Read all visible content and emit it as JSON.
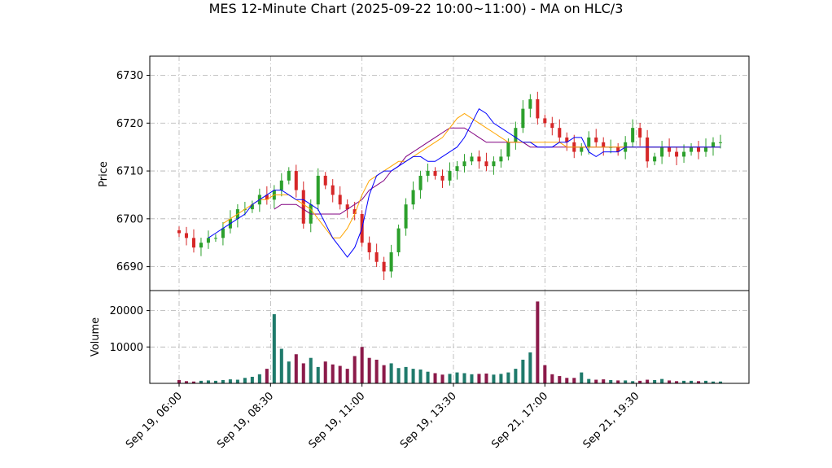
{
  "chart_data": {
    "type": "candlestick",
    "title": "MES 12-Minute Chart (2025-09-22 10:00~11:00) - MA on HLC/3",
    "price_panel": {
      "ylabel": "Price",
      "ylim": [
        6685,
        6734
      ],
      "yticks": [
        6690,
        6700,
        6710,
        6720,
        6730
      ]
    },
    "volume_panel": {
      "ylabel": "Volume",
      "ylim": [
        0,
        25500
      ],
      "yticks": [
        10000,
        20000
      ],
      "tick_labels": [
        "10000",
        "20000"
      ]
    },
    "x_axis": {
      "tick_labels": [
        "Sep 19, 06:00",
        "Sep 19, 08:30",
        "Sep 19, 11:00",
        "Sep 19, 13:30",
        "Sep 21, 17:00",
        "Sep 21, 19:30"
      ],
      "tick_bar_index": [
        0,
        12.5,
        25,
        37.5,
        50,
        62.5
      ],
      "bar_count": 75
    },
    "grid": true,
    "colors": {
      "up": "#2ca02c",
      "down": "#d62728",
      "ma_fast": "#0000ff",
      "ma_mid": "#ffa500",
      "ma_slow": "#800080",
      "volume_up": "#1f7a6b",
      "volume_down": "#8b1a4a",
      "grid": "#b0b0b0"
    },
    "close_path": [
      6697,
      6696,
      6694,
      6695,
      6696,
      6696,
      6698,
      6700,
      6702,
      6702,
      6703,
      6705,
      6704,
      6706,
      6708,
      6710,
      6706,
      6699,
      6703,
      6709,
      6707,
      6705,
      6703,
      6702,
      6701,
      6695,
      6693,
      6691,
      6689,
      6693,
      6698,
      6703,
      6706,
      6709,
      6710,
      6709,
      6708,
      6710,
      6711,
      6712,
      6713,
      6712,
      6711,
      6712,
      6713,
      6716,
      6719,
      6723,
      6725,
      6721,
      6720,
      6719,
      6717,
      6716,
      6714,
      6715,
      6717,
      6716,
      6715,
      6715,
      6714,
      6716,
      6719,
      6717,
      6712,
      6713,
      6715,
      6714,
      6713,
      6714,
      6715,
      6714,
      6715,
      6716,
      6716
    ],
    "volume": [
      900,
      600,
      500,
      700,
      800,
      700,
      900,
      1100,
      1000,
      1500,
      1800,
      2500,
      4000,
      19000,
      9500,
      6000,
      8000,
      5500,
      7000,
      4500,
      6000,
      5200,
      4800,
      4000,
      7500,
      10000,
      7000,
      6500,
      5000,
      5500,
      4200,
      4500,
      4000,
      3800,
      3200,
      2800,
      2400,
      2600,
      3000,
      2800,
      2500,
      2600,
      2700,
      2400,
      2600,
      3000,
      4000,
      6500,
      8500,
      22500,
      5000,
      2500,
      2000,
      1500,
      1500,
      3000,
      1200,
      1000,
      1100,
      900,
      800,
      800,
      600,
      700,
      1000,
      900,
      1200,
      800,
      600,
      700,
      700,
      600,
      700,
      500,
      500
    ],
    "ma_fast": [
      null,
      null,
      null,
      null,
      6696,
      6697,
      6698,
      6699,
      6700,
      6701,
      6703,
      6704,
      6705,
      6706,
      6706,
      6705,
      6704,
      6704,
      6703,
      6702,
      6699,
      6696,
      6694,
      6692,
      6694,
      6698,
      6705,
      6709,
      6710,
      6710,
      6711,
      6712,
      6713,
      6713,
      6712,
      6712,
      6713,
      6714,
      6715,
      6717,
      6720,
      6723,
      6722,
      6720,
      6719,
      6718,
      6717,
      6716,
      6716,
      6715,
      6715,
      6715,
      6716,
      6716,
      6717,
      6717,
      6714,
      6713,
      6714,
      6714,
      6714,
      6715,
      6715,
      6715,
      6715,
      6715,
      6715,
      6715,
      6715,
      6715,
      6715,
      6715,
      6715,
      6715,
      6715
    ],
    "ma_mid": [
      null,
      null,
      null,
      null,
      null,
      null,
      6699,
      6700,
      6701,
      6702,
      6703,
      6704,
      6704,
      6705,
      6705,
      6705,
      6704,
      6703,
      6702,
      6700,
      6698,
      6696,
      6696,
      6698,
      6701,
      6705,
      6708,
      6709,
      6710,
      6711,
      6712,
      6712,
      6713,
      6714,
      6715,
      6716,
      6717,
      6719,
      6721,
      6722,
      6721,
      6720,
      6719,
      6718,
      6717,
      6716,
      6716,
      6716,
      6716,
      6716,
      6716,
      6716,
      6716,
      6715,
      6715,
      6715,
      6715,
      6715,
      6715,
      6715,
      6715,
      6715,
      6715,
      6715,
      6715,
      6715,
      6715,
      6715,
      6715,
      6715,
      6715,
      6715,
      6715,
      6715,
      6715
    ],
    "ma_slow": [
      null,
      null,
      null,
      null,
      null,
      null,
      null,
      null,
      null,
      null,
      null,
      null,
      null,
      6702,
      6703,
      6703,
      6703,
      6702,
      6701,
      6701,
      6701,
      6701,
      6701,
      6702,
      6703,
      6704,
      6706,
      6707,
      6708,
      6710,
      6711,
      6713,
      6714,
      6715,
      6716,
      6717,
      6718,
      6719,
      6719,
      6719,
      6718,
      6717,
      6716,
      6716,
      6716,
      6716,
      6716,
      6716,
      6715,
      6715,
      6715,
      6715,
      6715,
      6715,
      6715,
      6715,
      6715,
      6715,
      6715,
      6715,
      6715,
      6715,
      6715,
      6715,
      6715,
      6715,
      6715,
      6715,
      6715,
      6715,
      6715,
      6715,
      6715,
      6715,
      6715
    ]
  }
}
